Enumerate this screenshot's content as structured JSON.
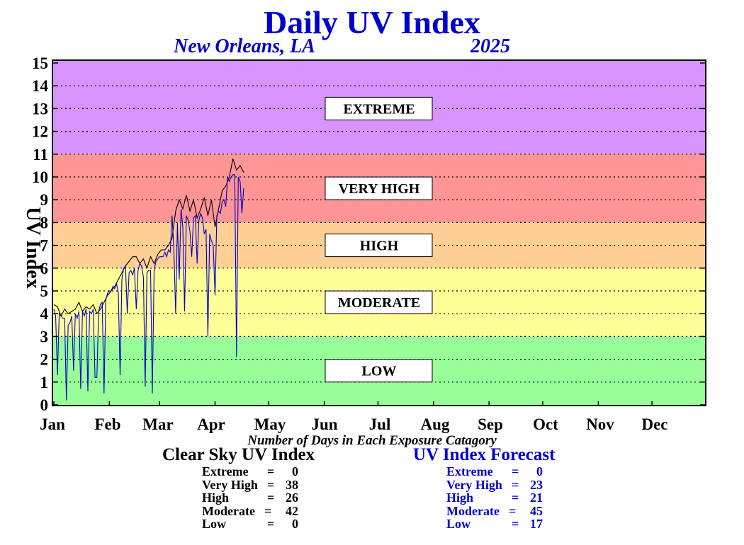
{
  "header": {
    "title": "Daily UV Index",
    "location": "New Orleans, LA",
    "year": "2025"
  },
  "colors": {
    "extreme_band": "#D893FF",
    "very_high_band": "#FF9595",
    "high_band": "#FFCF94",
    "moderate_band": "#FFFF98",
    "low_band": "#98FF98",
    "clear_sky_line": "#000000",
    "forecast_line": "#0000CC",
    "title_color": "#0000CC"
  },
  "chart_data": {
    "type": "line",
    "title": "Daily UV Index",
    "subtitle": "New Orleans, LA 2025",
    "ylabel": "UV Index",
    "xlabel": "",
    "ylim": [
      0,
      15
    ],
    "xlim": [
      1,
      365
    ],
    "yticks": [
      0,
      1,
      2,
      3,
      4,
      5,
      6,
      7,
      8,
      9,
      10,
      11,
      12,
      13,
      14,
      15
    ],
    "month_labels": [
      "Jan",
      "Feb",
      "Mar",
      "Apr",
      "May",
      "Jun",
      "Jul",
      "Aug",
      "Sep",
      "Oct",
      "Nov",
      "Dec"
    ],
    "grid": true,
    "bands": [
      {
        "label": "LOW",
        "from": 0,
        "to": 3
      },
      {
        "label": "MODERATE",
        "from": 3,
        "to": 6
      },
      {
        "label": "HIGH",
        "from": 6,
        "to": 8
      },
      {
        "label": "VERY HIGH",
        "from": 8,
        "to": 11
      },
      {
        "label": "EXTREME",
        "from": 11,
        "to": 15
      }
    ],
    "series": [
      {
        "name": "Clear Sky UV Index",
        "x": [
          1,
          3,
          5,
          7,
          9,
          11,
          13,
          15,
          17,
          19,
          21,
          23,
          25,
          27,
          29,
          31,
          33,
          35,
          37,
          39,
          41,
          43,
          45,
          47,
          49,
          51,
          53,
          55,
          57,
          59,
          61,
          63,
          65,
          67,
          69,
          71,
          73,
          75,
          77,
          79,
          81,
          83,
          85,
          87,
          89,
          91,
          93,
          95,
          97,
          99,
          101,
          103,
          105,
          107
        ],
        "values": [
          4.4,
          4.3,
          3.9,
          4.2,
          4.0,
          4.1,
          4.2,
          4.5,
          4.1,
          4.3,
          4.2,
          4.4,
          4.0,
          4.2,
          4.5,
          4.8,
          5.0,
          5.2,
          5.5,
          5.8,
          6.1,
          6.3,
          6.5,
          6.5,
          6.2,
          6.4,
          6.0,
          6.5,
          6.2,
          6.6,
          6.8,
          6.8,
          7.0,
          7.3,
          8.5,
          9.0,
          8.6,
          9.2,
          8.5,
          9.0,
          8.2,
          8.6,
          9.1,
          8.3,
          9.0,
          7.8,
          8.6,
          9.4,
          9.6,
          10.0,
          10.8,
          10.3,
          10.5,
          10.2
        ]
      },
      {
        "name": "UV Index Forecast",
        "x": [
          1,
          2,
          3,
          4,
          5,
          6,
          7,
          8,
          9,
          10,
          11,
          12,
          13,
          14,
          15,
          16,
          17,
          18,
          19,
          20,
          21,
          22,
          23,
          24,
          25,
          26,
          27,
          28,
          29,
          30,
          31,
          32,
          33,
          34,
          35,
          36,
          37,
          38,
          39,
          40,
          41,
          42,
          43,
          44,
          45,
          46,
          47,
          48,
          49,
          50,
          51,
          52,
          53,
          54,
          55,
          56,
          57,
          58,
          59,
          60,
          61,
          62,
          63,
          64,
          65,
          66,
          67,
          68,
          69,
          70,
          71,
          72,
          73,
          74,
          75,
          76,
          77,
          78,
          79,
          80,
          81,
          82,
          83,
          84,
          85,
          86,
          87,
          88,
          89,
          90,
          91,
          92,
          93,
          94,
          95,
          96,
          97,
          98,
          99,
          100,
          101,
          102,
          103,
          104,
          105,
          106,
          107
        ],
        "values": [
          4.2,
          3.9,
          1.3,
          4.0,
          3.9,
          3.8,
          3.8,
          0.2,
          3.5,
          3.6,
          3.9,
          1.5,
          4.0,
          3.8,
          4.1,
          0.7,
          4.1,
          3.9,
          4.2,
          0.6,
          4.1,
          4.0,
          4.2,
          1.2,
          1.2,
          4.1,
          4.4,
          4.5,
          0.5,
          4.6,
          4.9,
          5.0,
          5.0,
          5.2,
          5.1,
          5.3,
          4.9,
          1.3,
          5.5,
          6.0,
          6.1,
          4.0,
          5.8,
          5.9,
          5.7,
          6.0,
          4.2,
          5.9,
          6.2,
          6.1,
          5.6,
          0.8,
          5.8,
          5.9,
          5.9,
          0.5,
          5.9,
          6.3,
          6.4,
          6.5,
          6.5,
          6.5,
          6.7,
          6.5,
          6.8,
          6.7,
          8.3,
          6.9,
          4.0,
          8.0,
          5.5,
          8.6,
          7.8,
          4.1,
          8.3,
          8.1,
          7.6,
          6.5,
          8.2,
          8.3,
          6.2,
          8.1,
          8.4,
          8.2,
          7.5,
          7.7,
          3.0,
          7.5,
          7.2,
          7.0,
          4.8,
          8.3,
          8.5,
          8.4,
          8.9,
          9.0,
          8.7,
          10.0,
          9.8,
          10.0,
          10.1,
          10.1,
          2.1,
          10.0,
          9.8,
          8.4,
          9.5
        ]
      }
    ]
  },
  "stats": {
    "caption": "Number of Days in Each Exposure Catagory",
    "clear_sky": {
      "title": "Clear Sky UV Index",
      "rows": [
        {
          "label": "Extreme",
          "value": "0"
        },
        {
          "label": "Very High",
          "value": "38"
        },
        {
          "label": "High",
          "value": "26"
        },
        {
          "label": "Moderate",
          "value": "42"
        },
        {
          "label": "Low",
          "value": "0"
        }
      ]
    },
    "forecast": {
      "title": "UV Index Forecast",
      "rows": [
        {
          "label": "Extreme",
          "value": "0"
        },
        {
          "label": "Very High",
          "value": "23"
        },
        {
          "label": "High",
          "value": "21"
        },
        {
          "label": "Moderate",
          "value": "45"
        },
        {
          "label": "Low",
          "value": "17"
        }
      ]
    }
  }
}
